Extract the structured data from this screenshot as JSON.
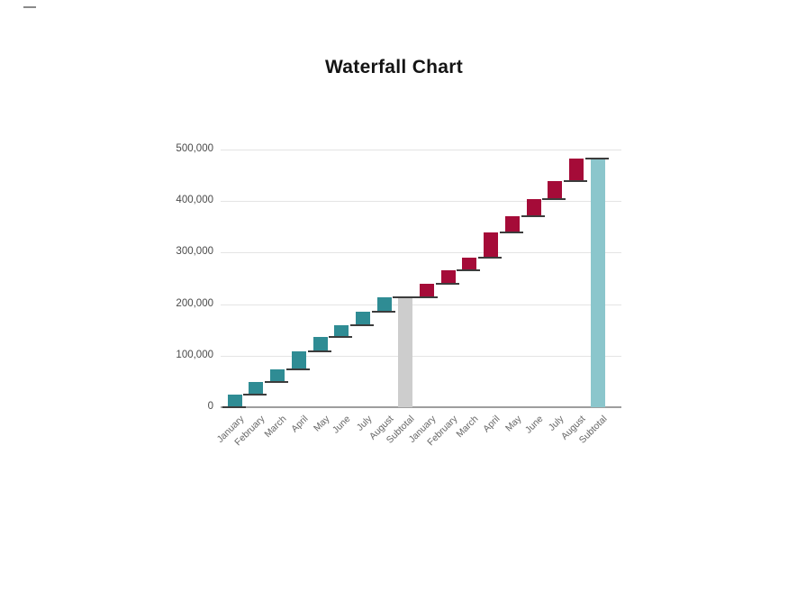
{
  "chart_data": {
    "type": "bar",
    "subtype": "waterfall",
    "title": "Waterfall Chart",
    "grid": true,
    "legend": "none",
    "ylim": [
      0,
      500000
    ],
    "ytick_step": 100000,
    "yticks": [
      {
        "value": 0,
        "label": "0"
      },
      {
        "value": 100000,
        "label": "100,000"
      },
      {
        "value": 200000,
        "label": "200,000"
      },
      {
        "value": 300000,
        "label": "300,000"
      },
      {
        "value": 400000,
        "label": "400,000"
      },
      {
        "value": 500000,
        "label": "500,000"
      }
    ],
    "categories": [
      "January",
      "February",
      "March",
      "April",
      "May",
      "June",
      "July",
      "August",
      "Subtotal",
      "January",
      "February",
      "March",
      "April",
      "May",
      "June",
      "July",
      "August",
      "Subtotal"
    ],
    "bars": [
      {
        "label": "January",
        "delta": 24500,
        "cumulative": 24500,
        "kind": "increase",
        "group": 1
      },
      {
        "label": "February",
        "delta": 24000,
        "cumulative": 48500,
        "kind": "increase",
        "group": 1
      },
      {
        "label": "March",
        "delta": 24500,
        "cumulative": 73000,
        "kind": "increase",
        "group": 1
      },
      {
        "label": "April",
        "delta": 35000,
        "cumulative": 108000,
        "kind": "increase",
        "group": 1
      },
      {
        "label": "May",
        "delta": 29000,
        "cumulative": 137000,
        "kind": "increase",
        "group": 1
      },
      {
        "label": "June",
        "delta": 22000,
        "cumulative": 159000,
        "kind": "increase",
        "group": 1
      },
      {
        "label": "July",
        "delta": 26000,
        "cumulative": 185000,
        "kind": "increase",
        "group": 1
      },
      {
        "label": "August",
        "delta": 28000,
        "cumulative": 213000,
        "kind": "increase",
        "group": 1
      },
      {
        "label": "Subtotal",
        "delta": 213000,
        "cumulative": 213000,
        "kind": "total",
        "group": 1
      },
      {
        "label": "January",
        "delta": 26000,
        "cumulative": 239000,
        "kind": "increase",
        "group": 2
      },
      {
        "label": "February",
        "delta": 26500,
        "cumulative": 265500,
        "kind": "increase",
        "group": 2
      },
      {
        "label": "March",
        "delta": 24500,
        "cumulative": 290000,
        "kind": "increase",
        "group": 2
      },
      {
        "label": "April",
        "delta": 48500,
        "cumulative": 338500,
        "kind": "increase",
        "group": 2
      },
      {
        "label": "May",
        "delta": 32000,
        "cumulative": 370500,
        "kind": "increase",
        "group": 2
      },
      {
        "label": "June",
        "delta": 34000,
        "cumulative": 404500,
        "kind": "increase",
        "group": 2
      },
      {
        "label": "July",
        "delta": 34000,
        "cumulative": 438500,
        "kind": "increase",
        "group": 2
      },
      {
        "label": "August",
        "delta": 44000,
        "cumulative": 482500,
        "kind": "increase",
        "group": 2
      },
      {
        "label": "Subtotal",
        "delta": 482500,
        "cumulative": 482500,
        "kind": "total",
        "group": 2
      }
    ],
    "colors": {
      "increase_group1": "#2f8c94",
      "increase_group2": "#a50b38",
      "subtotal_group1": "#cdcdcd",
      "subtotal_group2": "#8bc6cc",
      "connector": "#3c3c3c",
      "axis_baseline": "#9e9e9e",
      "gridline": "#e4e4e4",
      "tick_label": "#4a4a4a",
      "category_label": "#666666",
      "title": "#141414",
      "background": "#ffffff"
    }
  }
}
